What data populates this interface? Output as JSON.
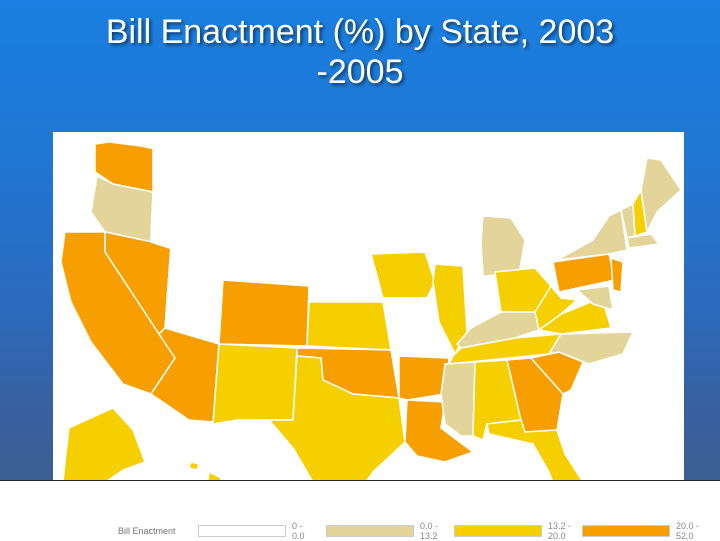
{
  "slide": {
    "title_line1": "Bill Enactment (%) by State, 2003",
    "title_line2": "-2005"
  },
  "legend": {
    "title": "Bill Enactment",
    "categories": [
      {
        "label": "0 - 0.0",
        "color": "#ffffff"
      },
      {
        "label": "0.0 - 13.2",
        "color": "#e3d49a"
      },
      {
        "label": "13.2 - 20.0",
        "color": "#f6cf00"
      },
      {
        "label": "20.0 - 52.0",
        "color": "#f79e00"
      }
    ]
  },
  "colors": {
    "class_0": "#ffffff",
    "class_1": "#e3d49a",
    "class_2": "#f6cf00",
    "class_3": "#f79e00"
  },
  "map_data": {
    "WA": 3,
    "OR": 1,
    "CA": 3,
    "NV": 3,
    "ID": 0,
    "MT": 0,
    "WY": 0,
    "UT": 0,
    "AZ": 3,
    "CO": 3,
    "NM": 2,
    "ND": 0,
    "SD": 0,
    "NE": 0,
    "KS": 2,
    "OK": 3,
    "TX": 2,
    "MN": 0,
    "IA": 2,
    "MO": 0,
    "AR": 3,
    "LA": 3,
    "WI": 0,
    "IL": 2,
    "MI": 1,
    "IN": 0,
    "OH": 2,
    "KY": 1,
    "TN": 2,
    "MS": 1,
    "AL": 2,
    "GA": 3,
    "FL": 2,
    "SC": 3,
    "NC": 1,
    "VA": 2,
    "WV": 2,
    "PA": 3,
    "NY": 1,
    "VT": 1,
    "NH": 2,
    "ME": 1,
    "MA": 1,
    "NJ": 3,
    "MD": 1,
    "AK": 2,
    "HI": 2
  }
}
